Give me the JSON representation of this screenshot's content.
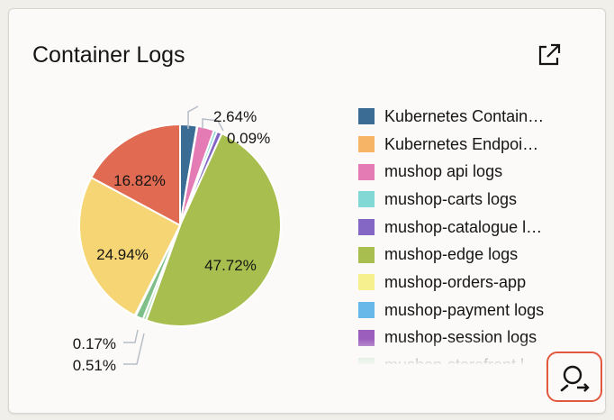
{
  "widget": {
    "title": "Container Logs",
    "open_icon": "external-link-icon",
    "explore_icon": "search-explore-icon",
    "accent_color": "#e2573e"
  },
  "chart_data": {
    "type": "pie",
    "title": "Container Logs",
    "slices": [
      {
        "label": "Kubernetes Contain…",
        "value": 2.64,
        "color": "#3a6c94"
      },
      {
        "label": "Kubernetes Endpoi…",
        "value": 0.09,
        "color": "#f5b466"
      },
      {
        "label": "mushop api logs",
        "value": 2.64,
        "color": "#e57bb5"
      },
      {
        "label": "mushop-carts logs",
        "value": 0.5,
        "color": "#82d8d4"
      },
      {
        "label": "mushop-catalogue l…",
        "value": 0.8,
        "color": "#8466c4"
      },
      {
        "label": "mushop-edge logs",
        "value": 47.72,
        "color": "#a8bf4f"
      },
      {
        "label": "mushop-orders-app",
        "value": 0.01,
        "color": "#f6f08e"
      },
      {
        "label": "mushop-payment logs",
        "value": 0.01,
        "color": "#68b9ea"
      },
      {
        "label": "mushop-session logs",
        "value": 0.01,
        "color": "#9c5ebc"
      },
      {
        "label": "mushop-storefront l…",
        "value": 0.51,
        "color": "#a8d9b0"
      },
      {
        "label": "",
        "value": 1.21,
        "color": "#7fc08a"
      },
      {
        "label": "",
        "value": 0.17,
        "color": "#c8e0f0"
      },
      {
        "label": "",
        "value": 24.94,
        "color": "#f6d574"
      },
      {
        "label": "",
        "value": 16.82,
        "color": "#e06b52"
      }
    ],
    "data_labels": [
      "2.64%",
      "0.09%",
      "47.72%",
      "0.17%",
      "0.51%",
      "24.94%",
      "16.82%"
    ],
    "legend_position": "right"
  }
}
